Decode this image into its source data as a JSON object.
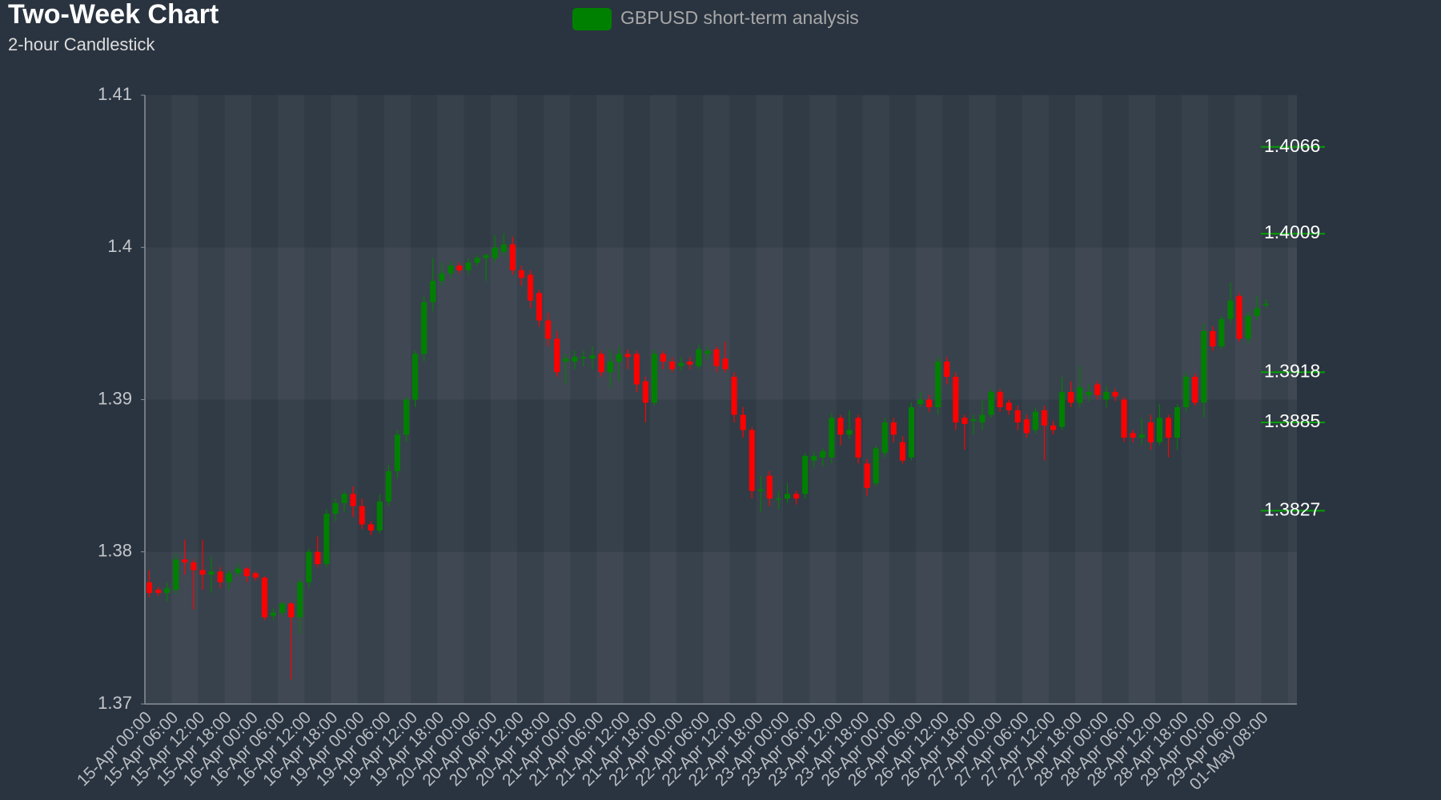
{
  "chart_data": {
    "type": "candlestick",
    "title": "Two-Week Chart",
    "subtitle": "2-hour Candlestick",
    "legend": "GBPUSD short-term analysis",
    "legend_color": "#008000",
    "up_color": "#008000",
    "down_color": "#ff0000",
    "level_color": "#00a000",
    "ylim": [
      1.37,
      1.41
    ],
    "yticks": [
      1.37,
      1.38,
      1.39,
      1.4,
      1.41
    ],
    "levels": [
      1.4066,
      1.4009,
      1.3918,
      1.3885,
      1.3827
    ],
    "categories": [
      "15-Apr 00:00",
      null,
      null,
      "15-Apr 06:00",
      null,
      null,
      "15-Apr 12:00",
      null,
      null,
      "15-Apr 18:00",
      null,
      null,
      "16-Apr 00:00",
      null,
      null,
      "16-Apr 06:00",
      null,
      null,
      "16-Apr 12:00",
      null,
      null,
      "16-Apr 18:00",
      null,
      null,
      "19-Apr 00:00",
      null,
      null,
      "19-Apr 06:00",
      null,
      null,
      "19-Apr 12:00",
      null,
      null,
      "19-Apr 18:00",
      null,
      null,
      "20-Apr 00:00",
      null,
      null,
      "20-Apr 06:00",
      null,
      null,
      "20-Apr 12:00",
      null,
      null,
      "20-Apr 18:00",
      null,
      null,
      "21-Apr 00:00",
      null,
      null,
      "21-Apr 06:00",
      null,
      null,
      "21-Apr 12:00",
      null,
      null,
      "21-Apr 18:00",
      null,
      null,
      "22-Apr 00:00",
      null,
      null,
      "22-Apr 06:00",
      null,
      null,
      "22-Apr 12:00",
      null,
      null,
      "22-Apr 18:00",
      null,
      null,
      "23-Apr 00:00",
      null,
      null,
      "23-Apr 06:00",
      null,
      null,
      "23-Apr 12:00",
      null,
      null,
      "23-Apr 18:00",
      null,
      null,
      "26-Apr 00:00",
      null,
      null,
      "26-Apr 06:00",
      null,
      null,
      "26-Apr 12:00",
      null,
      null,
      "26-Apr 18:00",
      null,
      null,
      "27-Apr 00:00",
      null,
      null,
      "27-Apr 06:00",
      null,
      null,
      "27-Apr 12:00",
      null,
      null,
      "27-Apr 18:00",
      null,
      null,
      "28-Apr 00:00",
      null,
      null,
      "28-Apr 06:00",
      null,
      null,
      "28-Apr 12:00",
      null,
      null,
      "28-Apr 18:00",
      null,
      null,
      "29-Apr 00:00",
      null,
      null,
      "29-Apr 06:00",
      null,
      null,
      "01-May 08:00"
    ],
    "open": [
      1.378,
      1.3775,
      1.3773,
      1.3775,
      1.3795,
      1.3793,
      1.3788,
      1.3785,
      1.3787,
      1.378,
      1.3786,
      1.3789,
      1.3786,
      1.3783,
      1.3758,
      1.376,
      1.3766,
      1.3757,
      1.378,
      1.38,
      1.3792,
      1.3825,
      1.3832,
      1.3838,
      1.383,
      1.3818,
      1.3814,
      1.3833,
      1.3853,
      1.3877,
      1.39,
      1.393,
      1.3964,
      1.3978,
      1.3983,
      1.3988,
      1.3985,
      1.399,
      1.3993,
      1.3993,
      1.3997,
      1.4002,
      1.3985,
      1.3982,
      1.397,
      1.3952,
      1.394,
      1.3925,
      1.3925,
      1.3927,
      1.3927,
      1.393,
      1.3918,
      1.3925,
      1.393,
      1.393,
      1.3912,
      1.3898,
      1.393,
      1.3925,
      1.3922,
      1.3925,
      1.3922,
      1.393,
      1.3933,
      1.3927,
      1.3915,
      1.389,
      1.388,
      1.384,
      1.385,
      1.3835,
      1.3835,
      1.3838,
      1.3838,
      1.386,
      1.3862,
      1.3862,
      1.3888,
      1.3877,
      1.3888,
      1.3858,
      1.3845,
      1.3865,
      1.3885,
      1.3872,
      1.3862,
      1.3897,
      1.39,
      1.3895,
      1.3925,
      1.3915,
      1.3888,
      1.3886,
      1.3885,
      1.389,
      1.3905,
      1.3898,
      1.3893,
      1.3887,
      1.388,
      1.3893,
      1.3883,
      1.3882,
      1.3905,
      1.3898,
      1.3903,
      1.391,
      1.39,
      1.3905,
      1.39,
      1.3878,
      1.3875,
      1.3885,
      1.3872,
      1.3888,
      1.3875,
      1.3895,
      1.3915,
      1.3898,
      1.3945,
      1.3935,
      1.3953,
      1.3968,
      1.394,
      1.3955,
      1.3962
    ],
    "high": [
      1.3788,
      1.3777,
      1.378,
      1.3799,
      1.3808,
      1.3795,
      1.3808,
      1.3797,
      1.379,
      1.3788,
      1.3792,
      1.379,
      1.3787,
      1.3784,
      1.3763,
      1.3767,
      1.3767,
      1.3782,
      1.3802,
      1.381,
      1.3828,
      1.3835,
      1.384,
      1.3843,
      1.3835,
      1.382,
      1.3838,
      1.3857,
      1.388,
      1.3902,
      1.3932,
      1.3968,
      1.3993,
      1.399,
      1.3991,
      1.399,
      1.3993,
      1.3995,
      1.3996,
      1.4008,
      1.4009,
      1.4007,
      1.3988,
      1.3985,
      1.3972,
      1.3957,
      1.3945,
      1.393,
      1.3932,
      1.3932,
      1.3935,
      1.3932,
      1.3933,
      1.3935,
      1.3933,
      1.3932,
      1.3915,
      1.3933,
      1.3932,
      1.3928,
      1.3928,
      1.3928,
      1.3936,
      1.3935,
      1.3935,
      1.3938,
      1.3918,
      1.3895,
      1.3882,
      1.385,
      1.3853,
      1.384,
      1.3845,
      1.384,
      1.3865,
      1.3866,
      1.3868,
      1.3891,
      1.389,
      1.3893,
      1.389,
      1.3861,
      1.387,
      1.3888,
      1.3888,
      1.3876,
      1.3898,
      1.3905,
      1.3903,
      1.3928,
      1.3928,
      1.3918,
      1.389,
      1.389,
      1.39,
      1.3907,
      1.3907,
      1.39,
      1.3896,
      1.389,
      1.3895,
      1.3896,
      1.3886,
      1.3915,
      1.3912,
      1.3922,
      1.391,
      1.3912,
      1.3909,
      1.3907,
      1.3902,
      1.388,
      1.3888,
      1.389,
      1.3897,
      1.389,
      1.3897,
      1.3918,
      1.3917,
      1.395,
      1.3948,
      1.3955,
      1.3977,
      1.397,
      1.3958,
      1.3968,
      1.3966
    ],
    "low": [
      1.377,
      1.3771,
      1.3767,
      1.3772,
      1.3785,
      1.3762,
      1.3775,
      1.3773,
      1.3776,
      1.3775,
      1.3784,
      1.378,
      1.3781,
      1.3755,
      1.3755,
      1.3758,
      1.3716,
      1.3746,
      1.3776,
      1.379,
      1.379,
      1.382,
      1.3826,
      1.3823,
      1.3815,
      1.3811,
      1.3812,
      1.383,
      1.3848,
      1.3872,
      1.3895,
      1.3925,
      1.3958,
      1.3975,
      1.398,
      1.3983,
      1.3982,
      1.3988,
      1.3978,
      1.399,
      1.3994,
      1.3982,
      1.3975,
      1.396,
      1.3948,
      1.3935,
      1.3915,
      1.391,
      1.392,
      1.3922,
      1.392,
      1.3915,
      1.3908,
      1.3912,
      1.392,
      1.3905,
      1.3885,
      1.3896,
      1.392,
      1.3918,
      1.3919,
      1.392,
      1.392,
      1.3926,
      1.3918,
      1.3918,
      1.3885,
      1.3875,
      1.3835,
      1.3826,
      1.383,
      1.3828,
      1.3832,
      1.3831,
      1.3835,
      1.3855,
      1.3856,
      1.3858,
      1.387,
      1.3874,
      1.3858,
      1.3837,
      1.3843,
      1.3862,
      1.3872,
      1.3858,
      1.386,
      1.3895,
      1.3892,
      1.389,
      1.391,
      1.388,
      1.3867,
      1.3877,
      1.388,
      1.3888,
      1.3892,
      1.389,
      1.388,
      1.3875,
      1.3878,
      1.386,
      1.3877,
      1.388,
      1.3895,
      1.3895,
      1.3899,
      1.39,
      1.3895,
      1.3899,
      1.3872,
      1.3872,
      1.387,
      1.3867,
      1.387,
      1.3862,
      1.3867,
      1.3892,
      1.3896,
      1.3888,
      1.3932,
      1.3933,
      1.395,
      1.3938,
      1.3937,
      1.3952,
      1.396
    ],
    "close": [
      1.3773,
      1.3773,
      1.3776,
      1.3795,
      1.3793,
      1.3788,
      1.3785,
      1.3787,
      1.378,
      1.3786,
      1.3789,
      1.3784,
      1.3783,
      1.3757,
      1.376,
      1.3766,
      1.3757,
      1.378,
      1.38,
      1.3792,
      1.3825,
      1.3832,
      1.3838,
      1.383,
      1.3818,
      1.3814,
      1.3833,
      1.3853,
      1.3877,
      1.39,
      1.393,
      1.3964,
      1.3978,
      1.3983,
      1.3988,
      1.3985,
      1.399,
      1.3993,
      1.3995,
      1.4,
      1.4002,
      1.3985,
      1.398,
      1.3965,
      1.3952,
      1.394,
      1.3918,
      1.3927,
      1.3928,
      1.3928,
      1.3929,
      1.3918,
      1.3925,
      1.393,
      1.3928,
      1.391,
      1.3898,
      1.393,
      1.3925,
      1.392,
      1.3924,
      1.3923,
      1.3933,
      1.3932,
      1.3922,
      1.392,
      1.389,
      1.388,
      1.384,
      1.3841,
      1.3835,
      1.3835,
      1.3838,
      1.3835,
      1.3863,
      1.3863,
      1.3866,
      1.3888,
      1.3877,
      1.388,
      1.3862,
      1.3842,
      1.3868,
      1.3885,
      1.3877,
      1.386,
      1.3895,
      1.39,
      1.3895,
      1.3925,
      1.3915,
      1.3885,
      1.3884,
      1.3887,
      1.389,
      1.3905,
      1.3895,
      1.3893,
      1.3885,
      1.3878,
      1.3892,
      1.3883,
      1.388,
      1.3905,
      1.3898,
      1.3908,
      1.3905,
      1.3903,
      1.3905,
      1.3902,
      1.3875,
      1.3875,
      1.3877,
      1.3872,
      1.3888,
      1.3875,
      1.3895,
      1.3915,
      1.3898,
      1.3945,
      1.3935,
      1.3953,
      1.3965,
      1.394,
      1.3955,
      1.396,
      1.3963
    ]
  }
}
